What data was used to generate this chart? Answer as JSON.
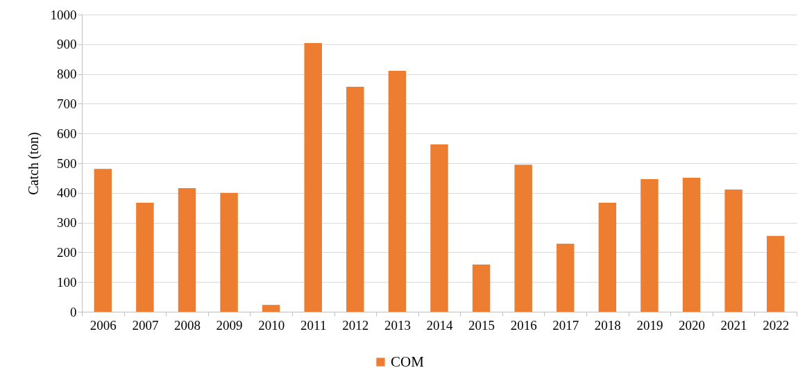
{
  "chart_data": {
    "type": "bar",
    "ylabel": "Catch (ton)",
    "categories": [
      "2006",
      "2007",
      "2008",
      "2009",
      "2010",
      "2011",
      "2012",
      "2013",
      "2014",
      "2015",
      "2016",
      "2017",
      "2018",
      "2019",
      "2020",
      "2021",
      "2022"
    ],
    "series": [
      {
        "name": "COM",
        "color": "#ed7d31",
        "values": [
          481,
          367,
          416,
          400,
          23,
          904,
          757,
          811,
          563,
          159,
          495,
          229,
          367,
          446,
          451,
          411,
          255
        ]
      }
    ],
    "ylim": [
      0,
      1000
    ],
    "yticks": [
      0,
      100,
      200,
      300,
      400,
      500,
      600,
      700,
      800,
      900,
      1000
    ],
    "grid": "y",
    "legend": "bottom"
  }
}
